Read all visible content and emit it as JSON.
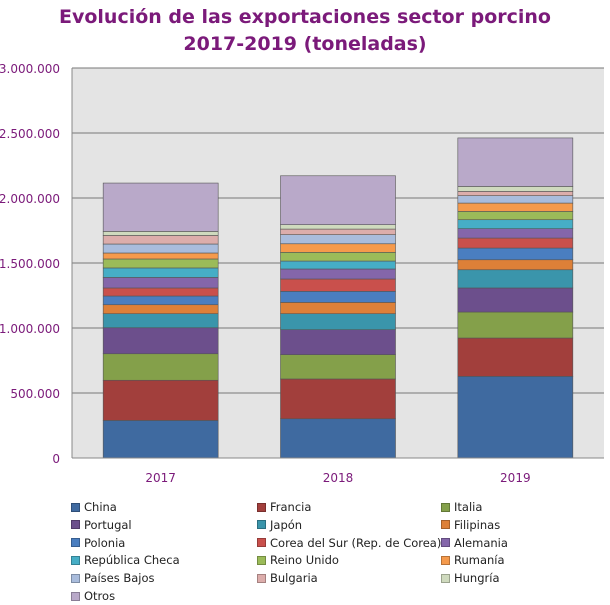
{
  "chart_data": {
    "type": "bar",
    "stacked": true,
    "title": "Evolución de las exportaciones sector porcino 2017-2019 (toneladas)",
    "title_lines": [
      "Evolución de las exportaciones sector porcino",
      "2017-2019 (toneladas)"
    ],
    "xlabel": "",
    "ylabel": "",
    "categories": [
      "2017",
      "2018",
      "2019"
    ],
    "ylim": [
      0,
      3000000
    ],
    "yticks": [
      0,
      500000,
      1000000,
      1500000,
      2000000,
      2500000,
      3000000
    ],
    "ytick_labels": [
      "0",
      "500.000",
      "1.000.000",
      "1.500.000",
      "2.000.000",
      "2.500.000",
      "3.000.000"
    ],
    "grid": true,
    "legend_position": "bottom",
    "series": [
      {
        "name": "China",
        "color": "#3f6aa0",
        "values": [
          289000,
          302000,
          628000
        ]
      },
      {
        "name": "Francia",
        "color": "#a23f3c",
        "values": [
          309000,
          306000,
          295000
        ]
      },
      {
        "name": "Italia",
        "color": "#84a04a",
        "values": [
          204000,
          187000,
          200000
        ]
      },
      {
        "name": "Portugal",
        "color": "#6c4f8c",
        "values": [
          200000,
          192000,
          185000
        ]
      },
      {
        "name": "Japón",
        "color": "#3a95ab",
        "values": [
          108000,
          123000,
          140000
        ]
      },
      {
        "name": "Filipinas",
        "color": "#dd8038",
        "values": [
          69000,
          87000,
          77000
        ]
      },
      {
        "name": "Polonia",
        "color": "#4a7ec0",
        "values": [
          67000,
          85000,
          90000
        ]
      },
      {
        "name": "Corea del Sur (Rep. de Corea)",
        "color": "#c9504c",
        "values": [
          62000,
          95000,
          77000
        ]
      },
      {
        "name": "Alemania",
        "color": "#8466aa",
        "values": [
          81000,
          77000,
          72000
        ]
      },
      {
        "name": "República Checa",
        "color": "#46aec6",
        "values": [
          73000,
          61000,
          69000
        ]
      },
      {
        "name": "Reino Unido",
        "color": "#9bbb59",
        "values": [
          69000,
          67000,
          64000
        ]
      },
      {
        "name": "Rumanía",
        "color": "#f59a4c",
        "values": [
          46000,
          66000,
          64000
        ]
      },
      {
        "name": "Países Bajos",
        "color": "#a9bcdc",
        "values": [
          69000,
          70000,
          57000
        ]
      },
      {
        "name": "Bulgaria",
        "color": "#dcadab",
        "values": [
          66000,
          43000,
          33000
        ]
      },
      {
        "name": "Hungría",
        "color": "#cfdabe",
        "values": [
          31000,
          34000,
          38000
        ]
      },
      {
        "name": "Otros",
        "color": "#b9a9c9",
        "values": [
          372000,
          376000,
          373000
        ]
      }
    ]
  },
  "style": {
    "title_color": "#7b1a7a",
    "axis_label_color": "#7b1a7a",
    "plot_bg": "#e4e4e4",
    "grid_color": "#777777"
  }
}
